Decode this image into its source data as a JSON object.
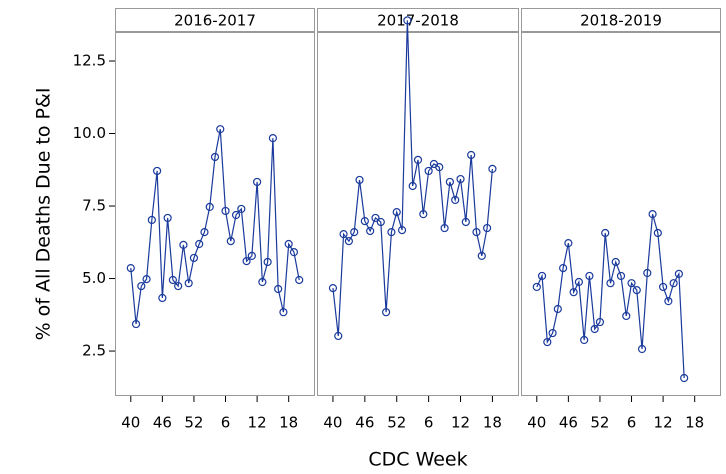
{
  "chart_data": [
    {
      "type": "line",
      "title": "2016-2017",
      "ylabel": "% of All Deaths Due to P&I",
      "color": "#1a3a9c",
      "x": [
        0,
        1,
        2,
        3,
        4,
        5,
        6,
        7,
        8,
        9,
        10,
        11,
        12,
        13,
        14,
        15,
        16,
        17,
        18,
        19,
        20,
        21,
        22,
        23,
        24,
        25,
        26,
        27,
        28,
        29,
        30,
        31,
        32
      ],
      "values": [
        5.36,
        3.43,
        4.74,
        4.98,
        7.02,
        8.71,
        4.33,
        7.09,
        4.95,
        4.74,
        6.16,
        4.84,
        5.71,
        6.19,
        6.6,
        7.47,
        9.19,
        10.15,
        7.33,
        6.29,
        7.19,
        7.4,
        5.6,
        5.78,
        8.33,
        4.88,
        5.57,
        9.84,
        4.64,
        3.84,
        6.19,
        5.91,
        4.95
      ],
      "xlim": [
        -3,
        35
      ],
      "xticks": [
        {
          "value": 0,
          "label": "40"
        },
        {
          "value": 6,
          "label": "46"
        },
        {
          "value": 12,
          "label": "52"
        },
        {
          "value": 18,
          "label": "6"
        },
        {
          "value": 24,
          "label": "12"
        },
        {
          "value": 30,
          "label": "18"
        }
      ],
      "ylim": [
        0.95,
        13.5
      ],
      "yticks": [
        2.5,
        5.0,
        7.5,
        10.0,
        12.5
      ]
    },
    {
      "type": "line",
      "title": "2017-2018",
      "xlabel": "CDC Week",
      "color": "#1a3a9c",
      "x": [
        0,
        1,
        2,
        3,
        4,
        5,
        6,
        7,
        8,
        9,
        10,
        11,
        12,
        13,
        14,
        15,
        16,
        17,
        18,
        19,
        20,
        21,
        22,
        23,
        24,
        25,
        26,
        27,
        28,
        29,
        30
      ],
      "values": [
        4.67,
        3.02,
        6.53,
        6.29,
        6.6,
        8.4,
        6.98,
        6.64,
        7.09,
        6.95,
        3.84,
        6.6,
        7.29,
        6.67,
        13.9,
        8.19,
        9.09,
        7.22,
        8.71,
        8.95,
        8.84,
        6.74,
        8.33,
        7.71,
        8.43,
        6.95,
        9.26,
        6.6,
        5.78,
        6.74,
        8.78
      ],
      "xlim": [
        -3,
        35
      ],
      "xticks": [
        {
          "value": 0,
          "label": "40"
        },
        {
          "value": 6,
          "label": "46"
        },
        {
          "value": 12,
          "label": "52"
        },
        {
          "value": 18,
          "label": "6"
        },
        {
          "value": 24,
          "label": "12"
        },
        {
          "value": 30,
          "label": "18"
        }
      ],
      "ylim": [
        0.95,
        13.5
      ]
    },
    {
      "type": "line",
      "title": "2018-2019",
      "color": "#1a3a9c",
      "x": [
        0,
        1,
        2,
        3,
        4,
        5,
        6,
        7,
        8,
        9,
        10,
        11,
        12,
        13,
        14,
        15,
        16,
        17,
        18,
        19,
        20,
        21,
        22,
        23,
        24,
        25,
        26,
        27,
        28
      ],
      "values": [
        4.71,
        5.09,
        2.81,
        3.12,
        3.95,
        5.36,
        6.22,
        4.53,
        4.88,
        2.88,
        5.09,
        3.26,
        3.5,
        6.57,
        4.84,
        5.57,
        5.09,
        3.71,
        4.84,
        4.6,
        2.57,
        5.19,
        7.22,
        6.57,
        4.71,
        4.22,
        4.84,
        5.16,
        1.57
      ],
      "xlim": [
        -3,
        35
      ],
      "xticks": [
        {
          "value": 0,
          "label": "40"
        },
        {
          "value": 6,
          "label": "46"
        },
        {
          "value": 12,
          "label": "52"
        },
        {
          "value": 18,
          "label": "6"
        },
        {
          "value": 24,
          "label": "12"
        },
        {
          "value": 30,
          "label": "18"
        }
      ],
      "ylim": [
        0.95,
        13.5
      ]
    }
  ]
}
